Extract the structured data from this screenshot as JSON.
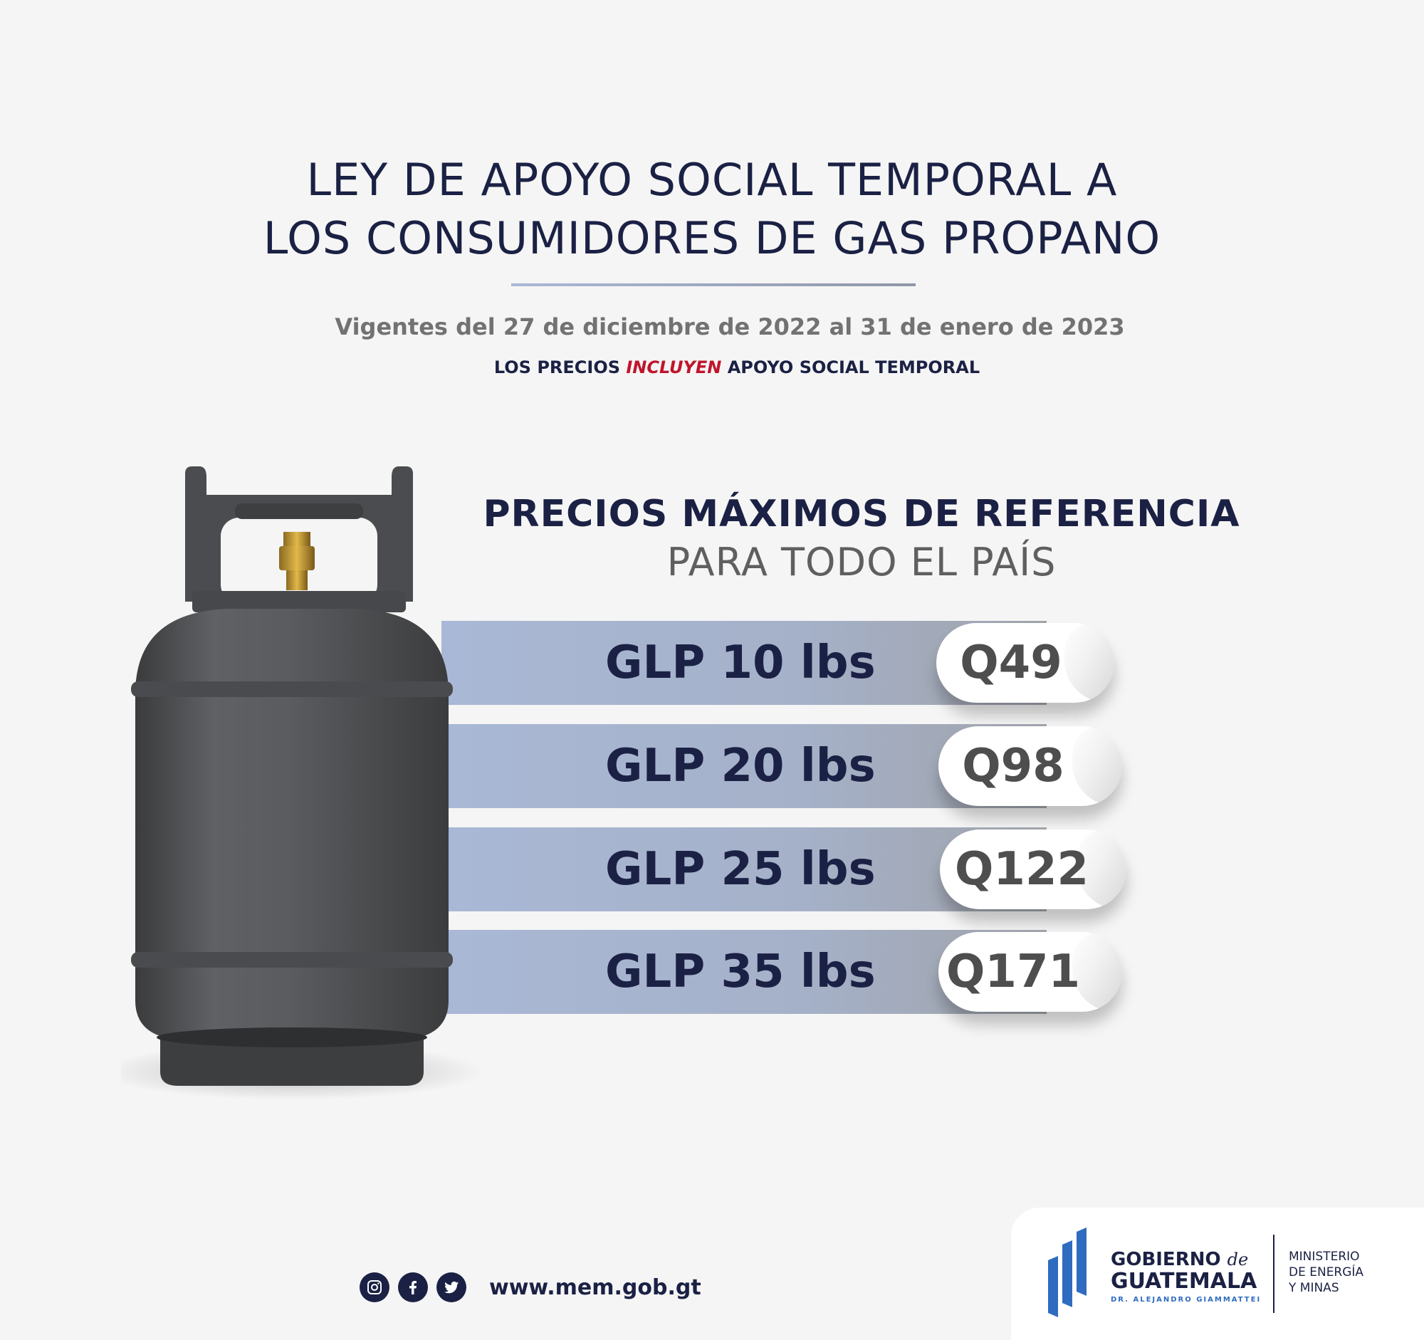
{
  "header": {
    "title_line1": "LEY DE APOYO SOCIAL TEMPORAL A",
    "title_line2": "LOS CONSUMIDORES DE GAS PROPANO",
    "validity": "Vigentes del 27 de diciembre de 2022 al 31 de enero de 2023",
    "note_prefix": "LOS PRECIOS ",
    "note_highlight": "INCLUYEN",
    "note_suffix": " APOYO SOCIAL TEMPORAL"
  },
  "prices": {
    "heading": "PRECIOS MÁXIMOS DE REFERENCIA",
    "subheading": "PARA TODO EL PAÍS",
    "items": [
      {
        "label": "GLP 10 lbs",
        "price": "Q49"
      },
      {
        "label": "GLP 20 lbs",
        "price": "Q98"
      },
      {
        "label": "GLP 25 lbs",
        "price": "Q122"
      },
      {
        "label": "GLP 35 lbs",
        "price": "Q171"
      }
    ]
  },
  "footer": {
    "icons": [
      "instagram-icon",
      "facebook-icon",
      "twitter-icon"
    ],
    "website": "www.mem.gob.gt",
    "logo_gobierno": "GOBIERNO",
    "logo_de": "de",
    "logo_guatemala": "GUATEMALA",
    "logo_president": "DR. ALEJANDRO GIAMMATTEI",
    "ministry_line1": "MINISTERIO",
    "ministry_line2": "DE ENERGÍA",
    "ministry_line3": "Y MINAS"
  },
  "colors": {
    "navy": "#1b2144",
    "highlight_red": "#c0152c",
    "band_blue": "#a9b8d6",
    "price_gray": "#4e4e4e",
    "background": "#f5f5f5",
    "flag_blue": "#2f6cc0"
  }
}
